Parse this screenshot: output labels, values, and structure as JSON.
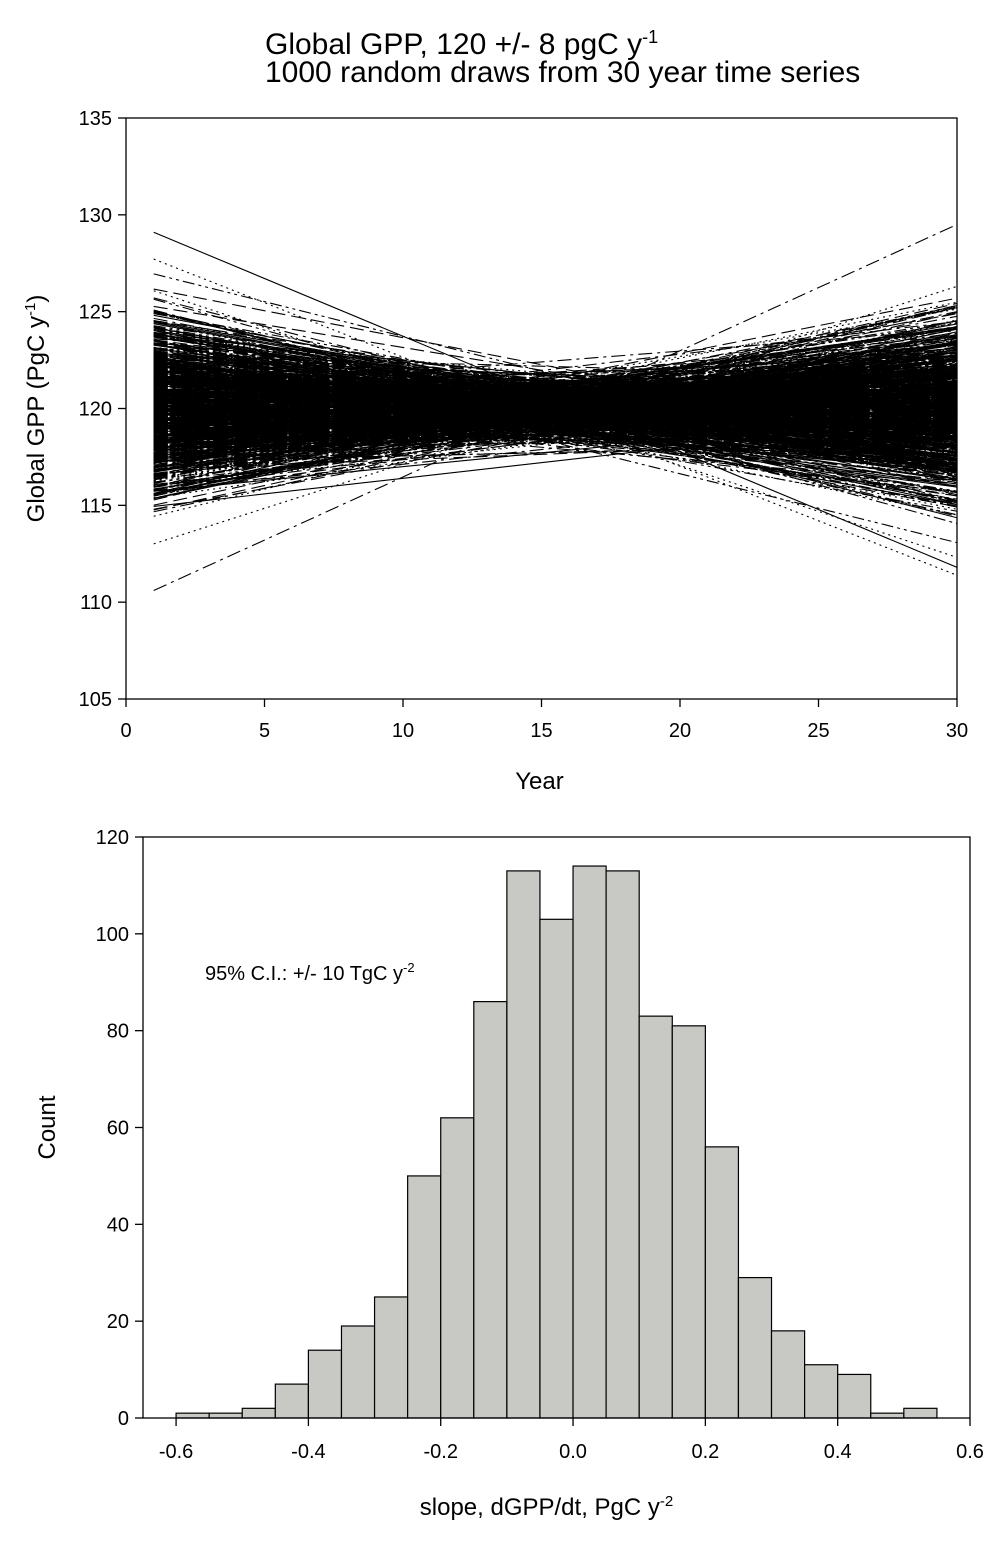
{
  "title": {
    "line1_text": "Global GPP, 120 +/- 8 pgC y",
    "line1_sup": "-1",
    "line2": "1000 random draws from 30 year time series"
  },
  "chart_data": [
    {
      "type": "line",
      "title": "Global GPP, 120 +/- 8 pgC y-1 / 1000 random draws from 30 year time series",
      "xlabel": "Year",
      "ylabel_text": "Global GPP (PgC y",
      "ylabel_sup": "-1",
      "ylabel_end": ")",
      "xlim": [
        0,
        30
      ],
      "ylim": [
        105,
        135
      ],
      "xticks": [
        0,
        5,
        10,
        15,
        20,
        25,
        30
      ],
      "yticks": [
        105,
        110,
        115,
        120,
        125,
        130,
        135
      ],
      "grid": false,
      "legend": "none",
      "n_series": 1000,
      "x_range": [
        1,
        30
      ],
      "series_mean": 120,
      "series_sd": 8,
      "series_envelope": {
        "at_year_1": [
          110.6,
          129.1
        ],
        "at_year_15": [
          115.8,
          124.4
        ],
        "at_year_30": [
          111.8,
          129.5
        ]
      },
      "line_color": "#000000",
      "line_styles": [
        "solid",
        "dashed",
        "dotted",
        "dash-dot",
        "dash-dot-dot"
      ]
    },
    {
      "type": "bar",
      "subtype": "histogram",
      "xlabel_text": "slope, dGPP/dt, PgC y",
      "xlabel_sup": "-2",
      "ylabel": "Count",
      "annotation_text": "95% C.I.: +/- 10 TgC y",
      "annotation_sup": "-2",
      "bin_edges": [
        -0.6,
        -0.55,
        -0.5,
        -0.45,
        -0.4,
        -0.35,
        -0.3,
        -0.25,
        -0.2,
        -0.15,
        -0.1,
        -0.05,
        0.0,
        0.05,
        0.1,
        0.15,
        0.2,
        0.25,
        0.3,
        0.35,
        0.4,
        0.45,
        0.5,
        0.55
      ],
      "values": [
        1,
        1,
        2,
        7,
        14,
        19,
        25,
        50,
        62,
        86,
        113,
        103,
        114,
        113,
        83,
        81,
        56,
        29,
        18,
        11,
        9,
        1,
        2
      ],
      "xlim": [
        -0.65,
        0.6
      ],
      "ylim": [
        0,
        120
      ],
      "xticks": [
        -0.6,
        -0.4,
        -0.2,
        0.0,
        0.2,
        0.4,
        0.6
      ],
      "xtick_labels": [
        "-0.6",
        "-0.4",
        "-0.2",
        "0.0",
        "0.2",
        "0.4",
        "0.6"
      ],
      "yticks": [
        0,
        20,
        40,
        60,
        80,
        100,
        120
      ],
      "grid": false,
      "legend": "none",
      "bar_color": "#c8c8c4",
      "edge_color": "#000000"
    }
  ]
}
